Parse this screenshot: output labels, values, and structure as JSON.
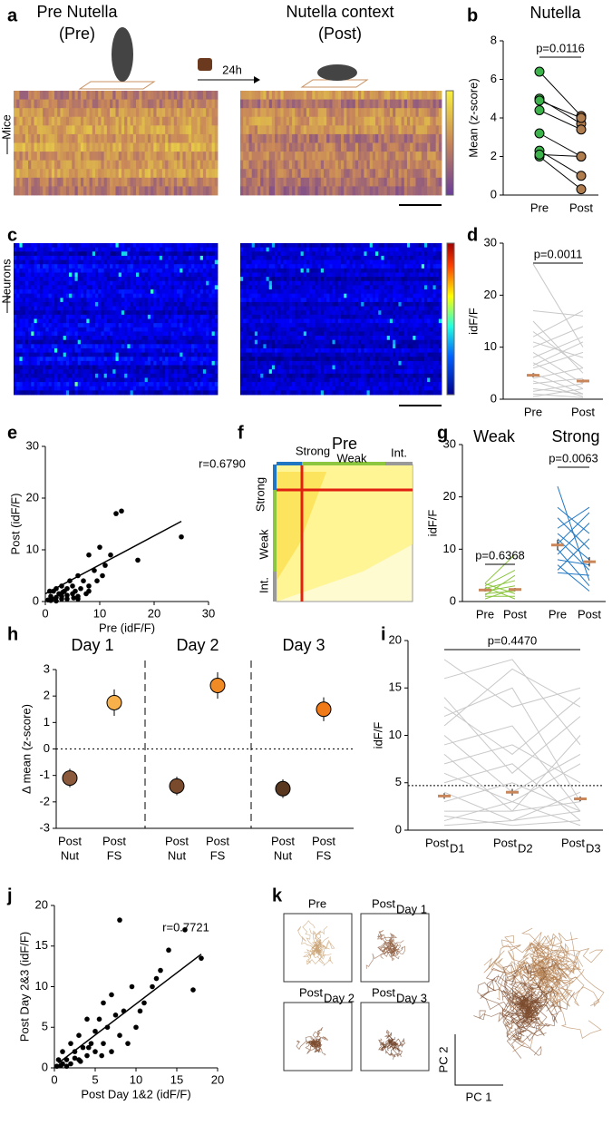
{
  "panel_labels": [
    "a",
    "b",
    "c",
    "d",
    "e",
    "f",
    "g",
    "h",
    "i",
    "j",
    "k"
  ],
  "panel_a": {
    "pre": [
      "Pre Nutella",
      "(Pre)"
    ],
    "post": [
      "Nutella context",
      "(Post)"
    ],
    "delay": "24h",
    "rows": "Mice"
  },
  "panel_c": {
    "rows": "Neurons"
  },
  "panel_f": {
    "title": "Pre",
    "top": [
      "Strong",
      "Weak",
      "Int."
    ],
    "side": [
      "Strong",
      "Weak",
      "Int."
    ]
  },
  "panel_k": {
    "boxes": [
      "Pre",
      {
        "main": "Post",
        "sub": "Day 1"
      },
      {
        "main": "Post",
        "sub": "Day 2"
      },
      {
        "main": "Post",
        "sub": "Day 3"
      }
    ],
    "x_axis": "PC 1",
    "y_axis": "PC 2"
  },
  "chart_data": [
    {
      "type": "paired",
      "title": "Nutella",
      "ylabel": "Mean (z-score)",
      "categories": [
        "Pre",
        "Post"
      ],
      "colors": [
        "#3cb44b",
        "#b07d4f"
      ],
      "line_color": "#000000",
      "pairs": [
        [
          6.4,
          4.1
        ],
        [
          5.0,
          3.7
        ],
        [
          4.9,
          4.0
        ],
        [
          4.4,
          3.4
        ],
        [
          3.2,
          2.0
        ],
        [
          2.3,
          1.0
        ],
        [
          2.0,
          0.3
        ],
        [
          2.1,
          2.0
        ]
      ],
      "ylim": [
        0,
        8
      ],
      "yticks": [
        0,
        2,
        4,
        6,
        8
      ],
      "annotation": "p=0.0116"
    },
    {
      "type": "paired_mean",
      "ylabel": "idF/F",
      "categories": [
        "Pre",
        "Post"
      ],
      "line_color": "#c8c8c8",
      "mean_color": "#c8865a",
      "lines": [
        [
          26,
          10
        ],
        [
          17,
          16
        ],
        [
          15,
          5
        ],
        [
          12,
          17
        ],
        [
          11,
          8
        ],
        [
          10,
          14
        ],
        [
          9,
          3
        ],
        [
          8,
          12
        ],
        [
          7,
          2
        ],
        [
          6,
          9
        ],
        [
          5,
          1
        ],
        [
          4,
          6
        ],
        [
          3.5,
          0.5
        ],
        [
          3,
          4
        ],
        [
          2,
          1
        ],
        [
          1.5,
          3
        ],
        [
          1,
          0.3
        ],
        [
          0.5,
          2
        ],
        [
          13,
          6
        ],
        [
          6.5,
          11
        ]
      ],
      "means": [
        4.6,
        3.5
      ],
      "errors": [
        0.4,
        0.3
      ],
      "ylim": [
        0,
        30
      ],
      "yticks": [
        0,
        10,
        20,
        30
      ],
      "annotation": "p=0.0011"
    },
    {
      "type": "scatter",
      "xlabel": "Pre (idF/F)",
      "ylabel": "Post (idF/F)",
      "color": "#000000",
      "x": [
        0.5,
        1,
        1.2,
        1.5,
        2,
        2,
        2.5,
        3,
        3,
        3.5,
        4,
        4,
        4.5,
        5,
        5,
        5.5,
        6,
        6,
        6.5,
        7,
        7.5,
        8,
        8,
        9,
        9.5,
        10,
        10.5,
        11,
        12,
        13,
        14,
        17,
        25,
        1,
        2,
        3,
        4,
        6,
        8,
        0.8,
        3.2,
        5.2
      ],
      "y": [
        0.3,
        1,
        0.5,
        2,
        0.8,
        2.5,
        1.5,
        1,
        3,
        2,
        0.5,
        2.5,
        4,
        1.5,
        3,
        2,
        5,
        1,
        2.5,
        4,
        1.5,
        9,
        3,
        6,
        4,
        10.5,
        5,
        7,
        9,
        17,
        17.5,
        8,
        12.5,
        0.2,
        0.1,
        0.5,
        1.2,
        0.5,
        2,
        2,
        1.8,
        0.7
      ],
      "fit_x": [
        0,
        25
      ],
      "fit_y": [
        1.5,
        15.5
      ],
      "xlim": [
        0,
        30
      ],
      "ylim": [
        0,
        30
      ],
      "xticks": [
        0,
        10,
        20,
        30
      ],
      "yticks": [
        0,
        10,
        20,
        30
      ],
      "annotation": "r=0.6790"
    },
    {
      "type": "paired_groups",
      "ylabel": "idF/F",
      "categories": [
        "Pre",
        "Post",
        "Pre",
        "Post"
      ],
      "mean_color": "#c8865a",
      "groups": [
        {
          "name": "Weak",
          "color": "#8dc63f",
          "pairs": [
            [
              3.5,
              9
            ],
            [
              3,
              6
            ],
            [
              2.5,
              4
            ],
            [
              2,
              3
            ],
            [
              1.5,
              2
            ],
            [
              1,
              1
            ],
            [
              0.5,
              2.5
            ],
            [
              3.4,
              1.5
            ],
            [
              2.8,
              0.5
            ],
            [
              1.2,
              5
            ]
          ],
          "means": [
            2.2,
            2.3
          ],
          "errors": [
            0.3,
            0.3
          ],
          "annotation": "p=0.6368"
        },
        {
          "name": "Strong",
          "color": "#1f77c4",
          "pairs": [
            [
              22,
              4
            ],
            [
              18,
              13
            ],
            [
              16,
              10
            ],
            [
              14,
              18
            ],
            [
              13,
              8
            ],
            [
              12,
              6
            ],
            [
              11,
              17
            ],
            [
              10,
              3
            ],
            [
              9,
              15
            ],
            [
              8,
              7
            ],
            [
              7,
              2
            ],
            [
              6,
              12
            ],
            [
              5.5,
              5
            ]
          ],
          "means": [
            10.8,
            7.6
          ],
          "errors": [
            1.0,
            0.9
          ],
          "annotation": "p=0.0063"
        }
      ],
      "ylim": [
        0,
        30
      ],
      "yticks": [
        0,
        10,
        20,
        30
      ]
    },
    {
      "type": "dot_error",
      "ylabel": "Δ mean (z-score)",
      "groups": [
        "Day 1",
        "Day 2",
        "Day 3"
      ],
      "categories": [
        [
          "Post",
          "Nut"
        ],
        [
          "Post",
          "FS"
        ],
        [
          "Post",
          "Nut"
        ],
        [
          "Post",
          "FS"
        ],
        [
          "Post",
          "Nut"
        ],
        [
          "Post",
          "FS"
        ]
      ],
      "values": [
        -1.1,
        1.75,
        -1.4,
        2.4,
        -1.5,
        1.5
      ],
      "errors": [
        0.35,
        0.5,
        0.35,
        0.5,
        0.35,
        0.45
      ],
      "colors": [
        "#8b5a3c",
        "#f8b04b",
        "#7a4a2c",
        "#f08a24",
        "#5a3820",
        "#f07a18"
      ],
      "hline": 0,
      "ylim": [
        -3,
        3
      ],
      "yticks": [
        -3,
        -2,
        -1,
        0,
        1,
        2,
        3
      ]
    },
    {
      "type": "paired_mean",
      "ylabel": "idF/F",
      "categories": [
        {
          "main": "Post",
          "sub": "D1"
        },
        {
          "main": "Post",
          "sub": "D2"
        },
        {
          "main": "Post",
          "sub": "D3"
        }
      ],
      "line_color": "#c8c8c8",
      "mean_color": "#c8865a",
      "lines": [
        [
          18,
          13,
          15
        ],
        [
          16,
          18,
          9
        ],
        [
          14,
          6,
          12
        ],
        [
          12,
          15,
          3
        ],
        [
          10,
          4,
          8
        ],
        [
          9,
          11,
          2
        ],
        [
          8,
          2,
          10
        ],
        [
          7,
          9,
          5
        ],
        [
          6,
          3,
          7
        ],
        [
          5,
          7,
          1
        ],
        [
          4,
          1,
          4
        ],
        [
          3,
          5,
          2
        ],
        [
          2,
          2,
          3
        ],
        [
          1.5,
          0.5,
          1
        ],
        [
          1,
          3,
          0.5
        ],
        [
          0.5,
          1,
          2
        ],
        [
          11,
          17,
          13
        ],
        [
          13,
          8,
          14
        ]
      ],
      "means": [
        3.6,
        4.0,
        3.3
      ],
      "errors": [
        0.3,
        0.35,
        0.25
      ],
      "hline": 4.7,
      "ylim": [
        0,
        20
      ],
      "yticks": [
        0,
        5,
        10,
        15,
        20
      ],
      "annotation": "p=0.4470"
    },
    {
      "type": "scatter",
      "xlabel": "Post Day 1&2 (idF/F)",
      "ylabel": "Post Day 2&3 (idF/F)",
      "color": "#000000",
      "x": [
        0.3,
        0.5,
        1,
        1,
        1.5,
        2,
        2,
        2.5,
        3,
        3,
        3.5,
        4,
        4,
        4.5,
        5,
        5,
        5.5,
        6,
        6,
        6.5,
        7,
        7,
        8,
        8,
        8.5,
        9,
        9.5,
        10,
        11,
        12,
        13,
        16,
        17,
        18,
        0.8,
        1.5,
        2.5,
        3.2,
        4.2,
        5.8,
        7.5,
        10.5,
        12.5,
        14
      ],
      "y": [
        0.2,
        1,
        0.5,
        2,
        1,
        3,
        0.5,
        2,
        4,
        1,
        2.5,
        6,
        1.5,
        3,
        4.5,
        2,
        6,
        3,
        8,
        5,
        2,
        9,
        18.2,
        4,
        7,
        3,
        10,
        5,
        8,
        10,
        12,
        17,
        9.6,
        13.5,
        0.3,
        0.2,
        1.2,
        0.8,
        2.5,
        1.5,
        6.5,
        7,
        11,
        14.5
      ],
      "fit_x": [
        0.5,
        18
      ],
      "fit_y": [
        0.6,
        14
      ],
      "xlim": [
        0,
        20
      ],
      "ylim": [
        0,
        20
      ],
      "xticks": [
        0,
        5,
        10,
        15,
        20
      ],
      "yticks": [
        0,
        5,
        10,
        15,
        20
      ],
      "annotation": "r=0.7721"
    }
  ]
}
